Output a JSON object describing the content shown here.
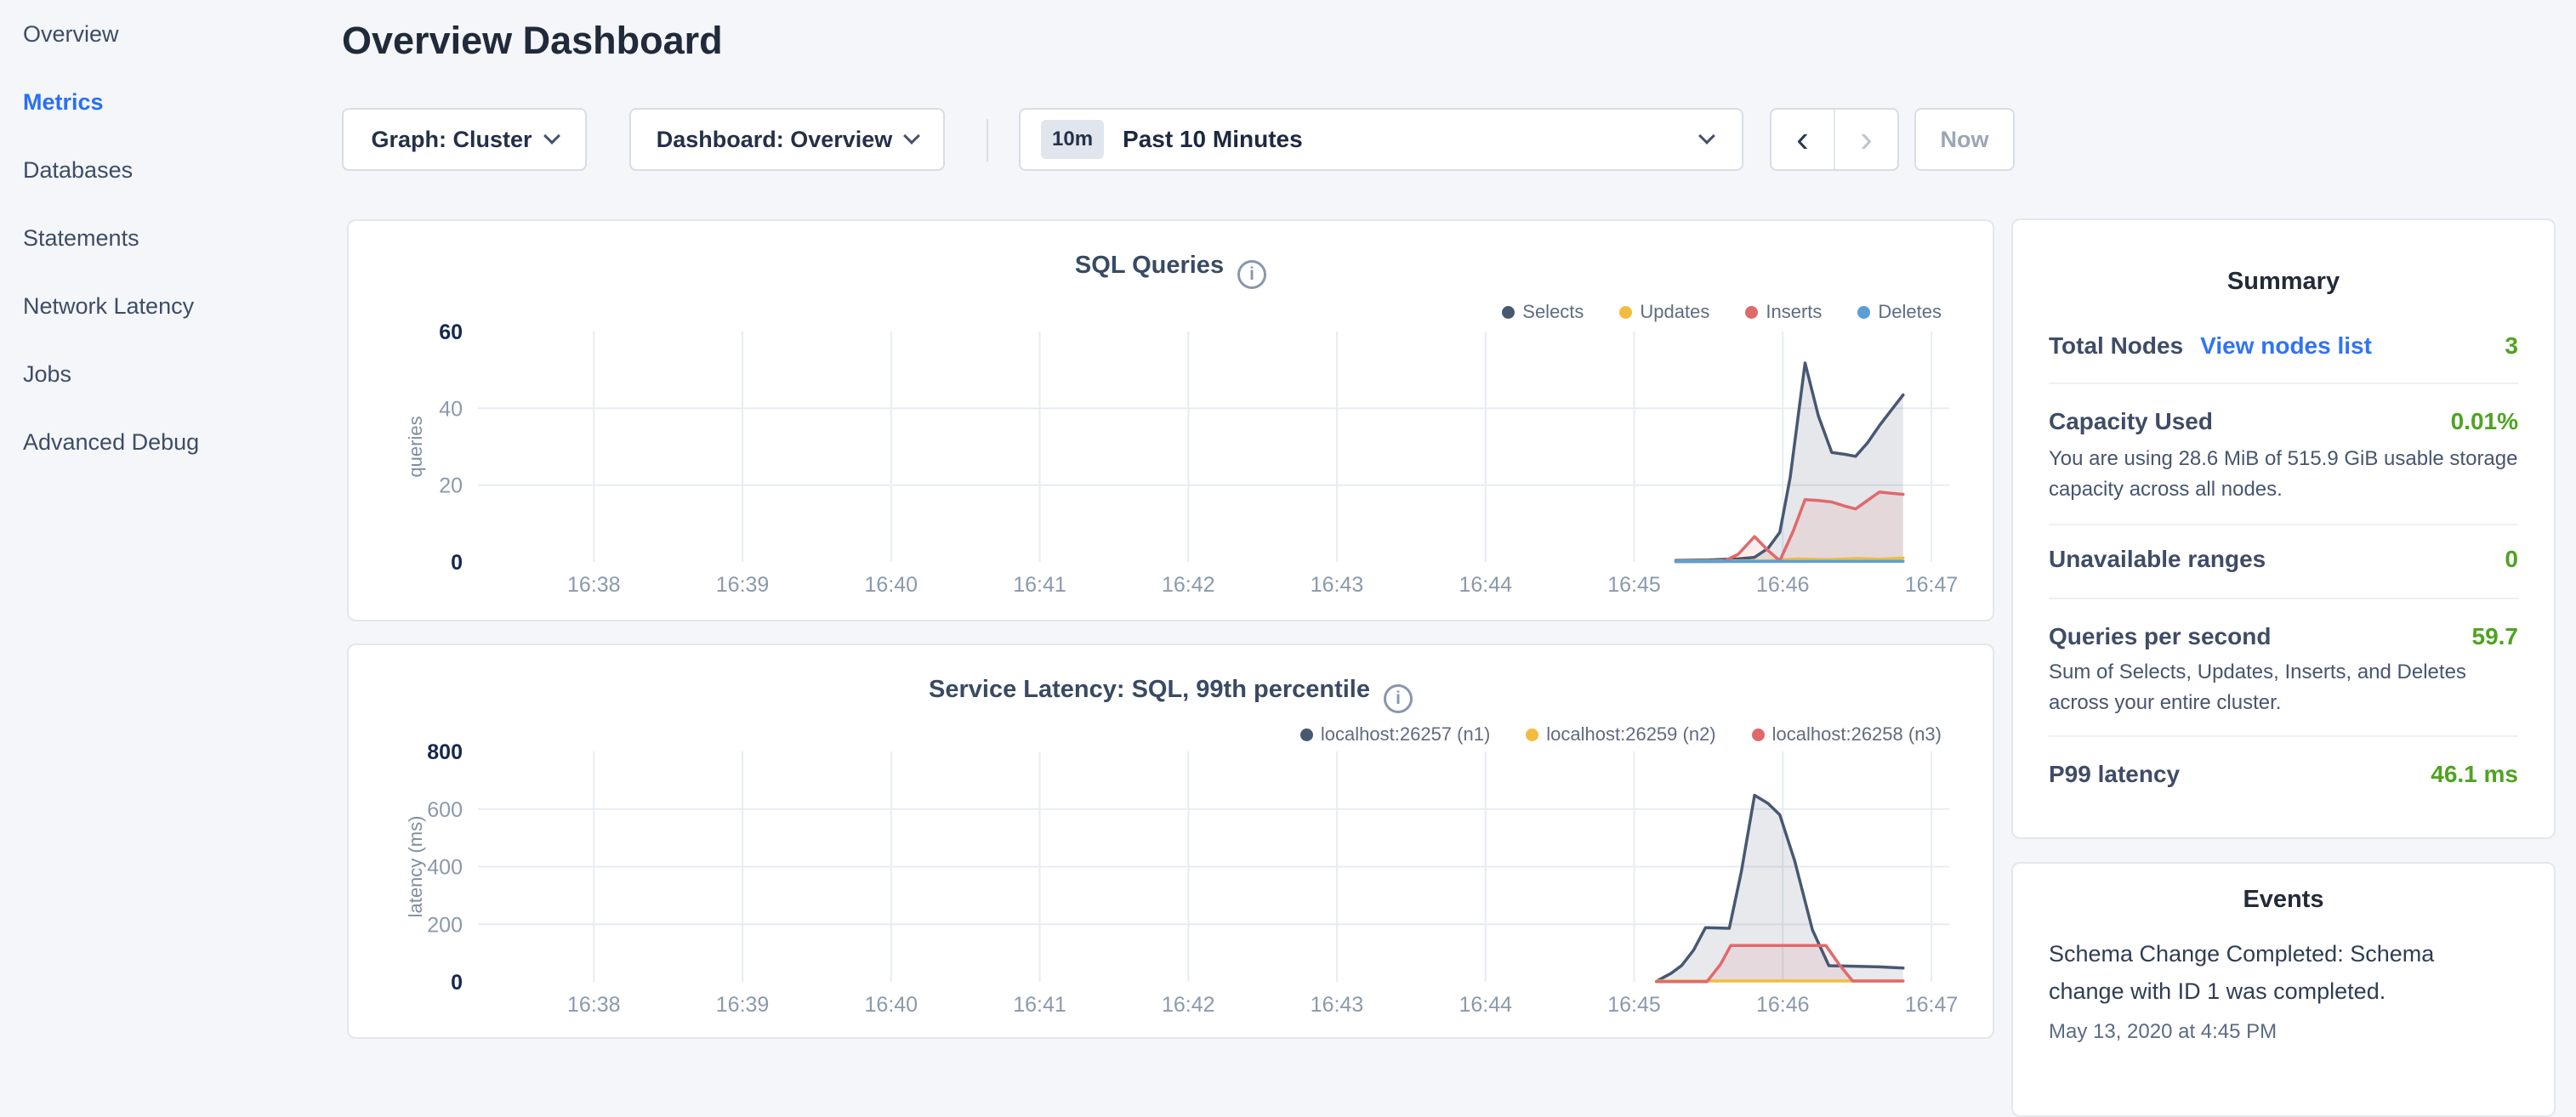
{
  "sidebar": {
    "items": [
      {
        "label": "Overview",
        "active": false
      },
      {
        "label": "Metrics",
        "active": true
      },
      {
        "label": "Databases",
        "active": false
      },
      {
        "label": "Statements",
        "active": false
      },
      {
        "label": "Network Latency",
        "active": false
      },
      {
        "label": "Jobs",
        "active": false
      },
      {
        "label": "Advanced Debug",
        "active": false
      }
    ]
  },
  "header": {
    "title": "Overview Dashboard"
  },
  "controls": {
    "graph_label": "Graph: Cluster",
    "dashboard_label": "Dashboard: Overview",
    "time_badge": "10m",
    "time_label": "Past 10 Minutes",
    "prev_label": "‹",
    "next_label": "›",
    "now_label": "Now"
  },
  "colors": {
    "accent_blue": "#2a6ff2",
    "link_blue": "#2f73f7",
    "value_green": "#4fa321",
    "grid": "#e8ecf2",
    "tick_gray": "#8b99ad",
    "tick_dark": "#15294d"
  },
  "summary": {
    "title": "Summary",
    "rows": [
      {
        "label": "Total Nodes",
        "link": "View nodes list",
        "value": "3"
      },
      {
        "label": "Capacity Used",
        "value": "0.01%",
        "description": "You are using 28.6 MiB of 515.9 GiB usable storage capacity across all nodes."
      },
      {
        "label": "Unavailable ranges",
        "value": "0"
      },
      {
        "label": "Queries per second",
        "value": "59.7",
        "description": "Sum of Selects, Updates, Inserts, and Deletes across your entire cluster."
      },
      {
        "label": "P99 latency",
        "value": "46.1 ms"
      }
    ]
  },
  "events": {
    "title": "Events",
    "items": [
      {
        "text": "Schema Change Completed: Schema change with ID 1 was completed.",
        "time": "May 13, 2020 at 4:45 PM"
      }
    ]
  },
  "chart_data": [
    {
      "type": "line",
      "title": "SQL Queries",
      "ylabel": "queries",
      "ylim": [
        0,
        60
      ],
      "y_ticks": [
        0,
        20,
        40,
        60
      ],
      "x_ticks": [
        "16:38",
        "16:39",
        "16:40",
        "16:41",
        "16:42",
        "16:43",
        "16:44",
        "16:45",
        "16:46",
        "16:47"
      ],
      "x_unit": "minutes after 16:38",
      "x_start": -0.78,
      "x_end": 9.12,
      "grid": true,
      "legend_position": "top-right",
      "series": [
        {
          "name": "Selects",
          "color": "#475872",
          "fill": "rgba(71,88,114,0.14)",
          "points": [
            [
              7.28,
              0.4
            ],
            [
              7.5,
              0.5
            ],
            [
              7.7,
              0.8
            ],
            [
              7.81,
              1.2
            ],
            [
              7.9,
              3.5
            ],
            [
              7.98,
              7.7
            ],
            [
              8.05,
              22
            ],
            [
              8.15,
              51.8
            ],
            [
              8.24,
              38
            ],
            [
              8.33,
              28.5
            ],
            [
              8.42,
              28
            ],
            [
              8.49,
              27.5
            ],
            [
              8.57,
              31
            ],
            [
              8.65,
              35.5
            ],
            [
              8.73,
              39.5
            ],
            [
              8.81,
              43.5
            ]
          ]
        },
        {
          "name": "Updates",
          "color": "#f0bd3e",
          "fill": "rgba(240,189,62,0.10)",
          "points": [
            [
              7.28,
              0.2
            ],
            [
              7.9,
              0.3
            ],
            [
              8.1,
              0.8
            ],
            [
              8.3,
              0.6
            ],
            [
              8.5,
              0.9
            ],
            [
              8.65,
              0.7
            ],
            [
              8.81,
              1.0
            ]
          ]
        },
        {
          "name": "Inserts",
          "color": "#e0696b",
          "fill": "rgba(224,105,107,0.12)",
          "points": [
            [
              7.28,
              0.05
            ],
            [
              7.6,
              0.1
            ],
            [
              7.7,
              2
            ],
            [
              7.81,
              6.6
            ],
            [
              7.9,
              3
            ],
            [
              7.98,
              0.3
            ],
            [
              8.07,
              8
            ],
            [
              8.15,
              16.2
            ],
            [
              8.24,
              16
            ],
            [
              8.33,
              15.6
            ],
            [
              8.42,
              14.5
            ],
            [
              8.49,
              13.8
            ],
            [
              8.57,
              16
            ],
            [
              8.65,
              18.2
            ],
            [
              8.73,
              17.9
            ],
            [
              8.81,
              17.6
            ]
          ]
        },
        {
          "name": "Deletes",
          "color": "#5a9fd6",
          "fill": "rgba(90,159,214,0.10)",
          "points": [
            [
              7.28,
              0.1
            ],
            [
              8.81,
              0.15
            ]
          ]
        }
      ]
    },
    {
      "type": "line",
      "title": "Service Latency: SQL, 99th percentile",
      "ylabel": "latency (ms)",
      "ylim": [
        0,
        800
      ],
      "y_ticks": [
        0,
        200,
        400,
        600,
        800
      ],
      "x_ticks": [
        "16:38",
        "16:39",
        "16:40",
        "16:41",
        "16:42",
        "16:43",
        "16:44",
        "16:45",
        "16:46",
        "16:47"
      ],
      "x_unit": "minutes after 16:38",
      "x_start": -0.78,
      "x_end": 9.12,
      "grid": true,
      "legend_position": "top-right",
      "series": [
        {
          "name": "localhost:26257 (n1)",
          "color": "#475872",
          "fill": "rgba(71,88,114,0.13)",
          "points": [
            [
              7.15,
              2
            ],
            [
              7.25,
              30
            ],
            [
              7.32,
              57
            ],
            [
              7.4,
              110
            ],
            [
              7.48,
              188
            ],
            [
              7.64,
              186
            ],
            [
              7.72,
              380
            ],
            [
              7.81,
              648
            ],
            [
              7.9,
              620
            ],
            [
              7.98,
              580
            ],
            [
              8.08,
              420
            ],
            [
              8.2,
              180
            ],
            [
              8.31,
              56
            ],
            [
              8.5,
              54
            ],
            [
              8.65,
              52
            ],
            [
              8.81,
              48
            ]
          ]
        },
        {
          "name": "localhost:26259 (n2)",
          "color": "#f0bd3e",
          "fill": "rgba(240,189,62,0.10)",
          "points": [
            [
              7.15,
              3
            ],
            [
              8.81,
              3
            ]
          ]
        },
        {
          "name": "localhost:26258 (n3)",
          "color": "#e0696b",
          "fill": "rgba(224,105,107,0.12)",
          "points": [
            [
              7.15,
              1
            ],
            [
              7.49,
              1
            ],
            [
              7.58,
              60
            ],
            [
              7.65,
              126
            ],
            [
              8.29,
              126
            ],
            [
              8.38,
              60
            ],
            [
              8.47,
              3
            ],
            [
              8.81,
              3
            ]
          ]
        }
      ]
    }
  ]
}
